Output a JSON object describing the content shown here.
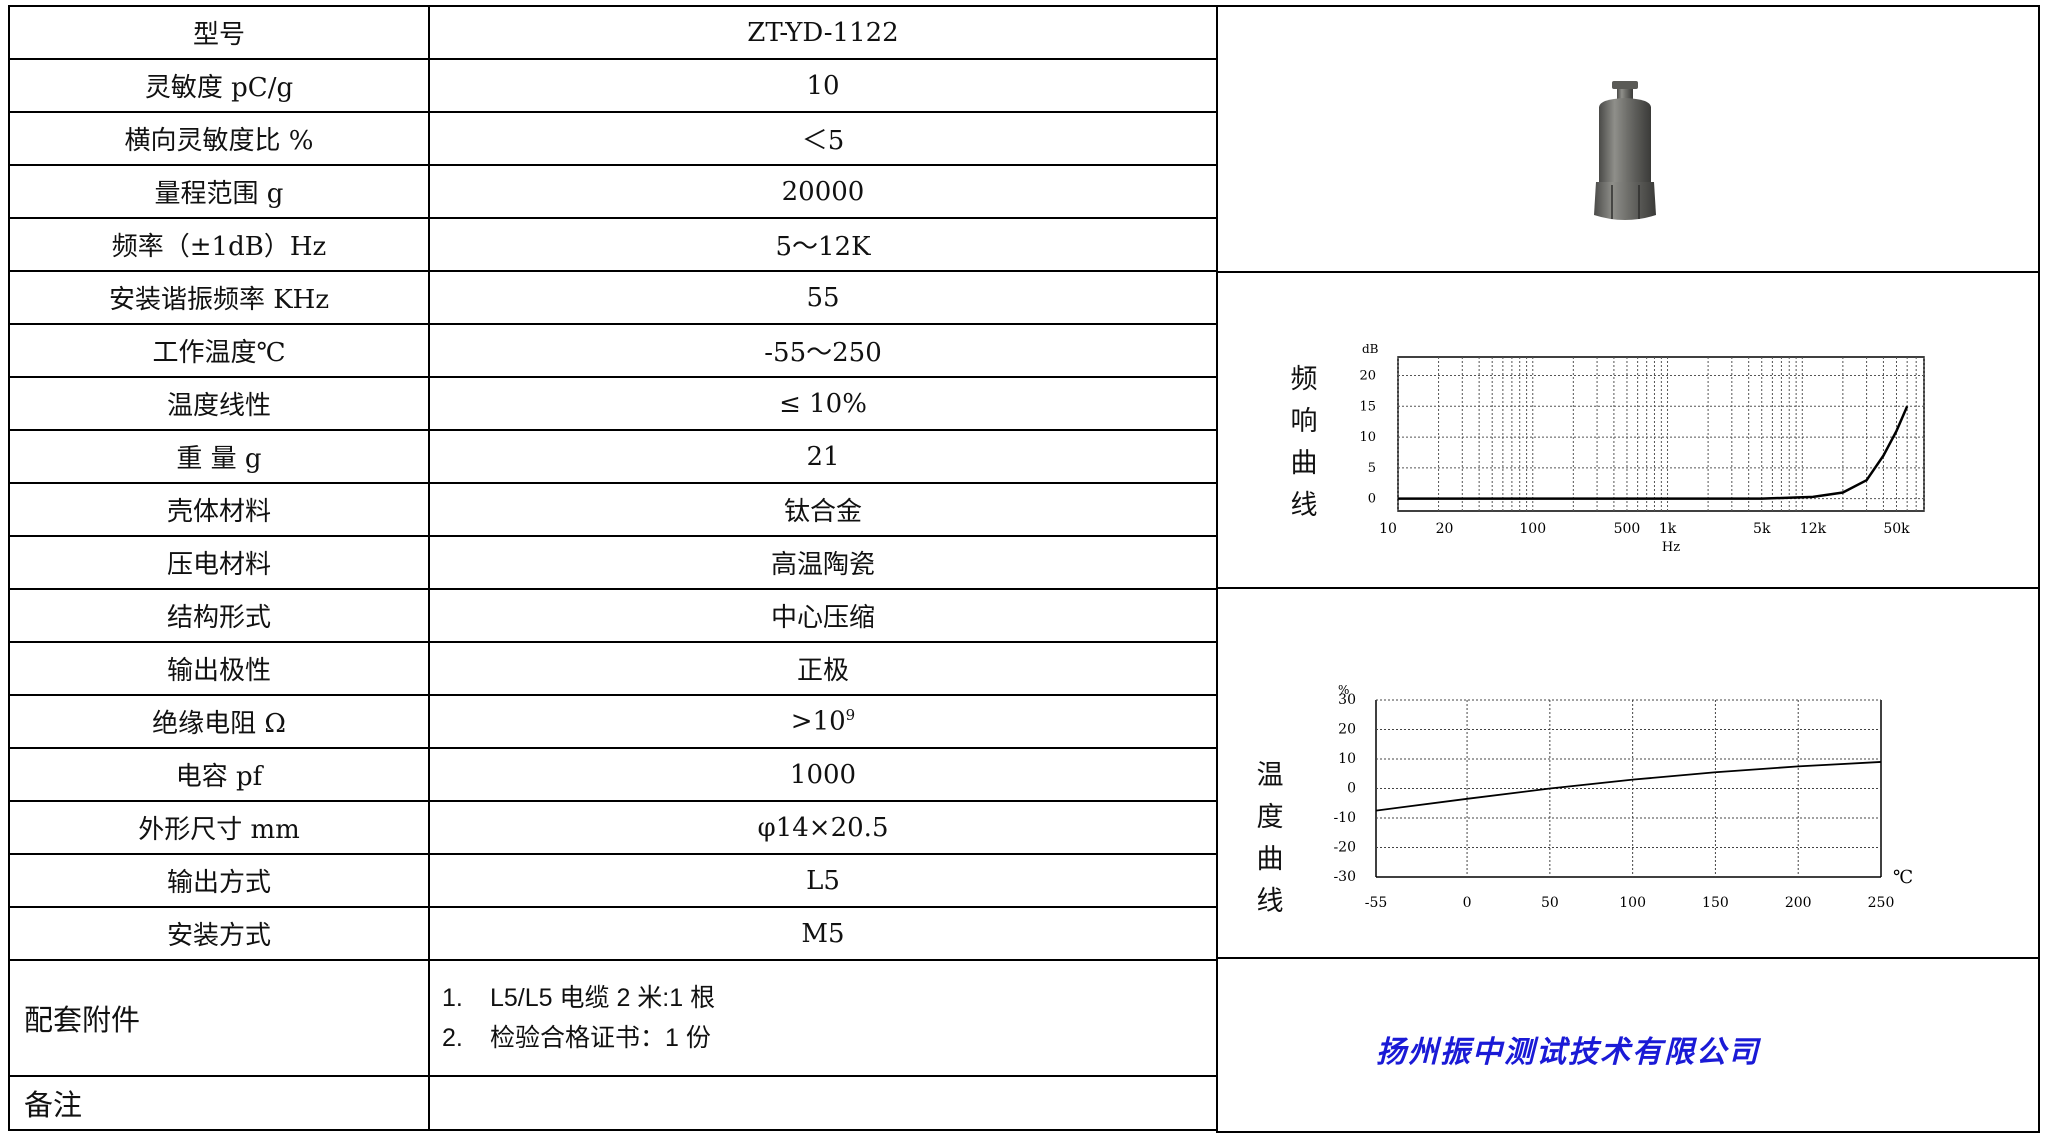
{
  "specs": [
    {
      "label": "型号",
      "value": "ZT-YD-1122"
    },
    {
      "label": "灵敏度 pC/g",
      "value": "10"
    },
    {
      "label": "横向灵敏度比 %",
      "value": "＜5"
    },
    {
      "label": "量程范围 g",
      "value": "20000"
    },
    {
      "label": "频率（±1dB）Hz",
      "value": "5～12K"
    },
    {
      "label": "安装谐振频率 KHz",
      "value": "55"
    },
    {
      "label": "工作温度℃",
      "value": "-55～250"
    },
    {
      "label": "温度线性",
      "value": "≤ 10%"
    },
    {
      "label": "重 量 g",
      "value": "21"
    },
    {
      "label": "壳体材料",
      "value": "钛合金"
    },
    {
      "label": "压电材料",
      "value": "高温陶瓷"
    },
    {
      "label": "结构形式",
      "value": "中心压缩"
    },
    {
      "label": "输出极性",
      "value": "正极"
    },
    {
      "label": "绝缘电阻 Ω",
      "value": ">10",
      "value_sup": "9"
    },
    {
      "label": "电容 pf",
      "value": "1000"
    },
    {
      "label": "外形尺寸 mm",
      "value": "φ14×20.5"
    },
    {
      "label": "输出方式",
      "value": "L5"
    },
    {
      "label": "安装方式",
      "value": "M5"
    }
  ],
  "accessories": {
    "label": "配套附件",
    "items": [
      {
        "num": "1.",
        "text": "L5/L5 电缆 2 米:1 根"
      },
      {
        "num": "2.",
        "text": "检验合格证书：1 份"
      }
    ]
  },
  "remarks": {
    "label": "备注",
    "value": ""
  },
  "company": "扬州振中测试技术有限公司",
  "freq_chart_label": "频响曲线",
  "temp_chart_label": "温度曲线",
  "chart_data": [
    {
      "type": "line",
      "title": "",
      "ylabel": "dB",
      "xlabel": "Hz",
      "x_tick_labels": [
        "10",
        "20",
        "100",
        "500",
        "1k",
        "5k",
        "12k",
        "50k"
      ],
      "y_tick_labels": [
        "0",
        "5",
        "10",
        "15",
        "20"
      ],
      "ylim": [
        -2,
        23
      ],
      "x_scale": "log",
      "grid": true,
      "series": [
        {
          "x": [
            10,
            100,
            1000,
            5000,
            12000,
            20000,
            30000,
            40000,
            50000,
            60000
          ],
          "values": [
            0,
            0,
            0,
            0,
            0.3,
            1,
            3,
            7,
            11,
            15
          ]
        }
      ]
    },
    {
      "type": "line",
      "title": "",
      "ylabel": "%",
      "xlabel": "℃",
      "x_tick_labels": [
        "-55",
        "0",
        "50",
        "100",
        "150",
        "200",
        "250"
      ],
      "y_tick_labels": [
        "30",
        "20",
        "10",
        "0",
        "-10",
        "-20",
        "-30"
      ],
      "ylim": [
        -30,
        30
      ],
      "xlim": [
        -55,
        250
      ],
      "grid": true,
      "series": [
        {
          "x": [
            -55,
            0,
            50,
            100,
            150,
            200,
            250
          ],
          "values": [
            -7.5,
            -3.5,
            0,
            3,
            5.5,
            7.5,
            9
          ]
        }
      ]
    }
  ]
}
